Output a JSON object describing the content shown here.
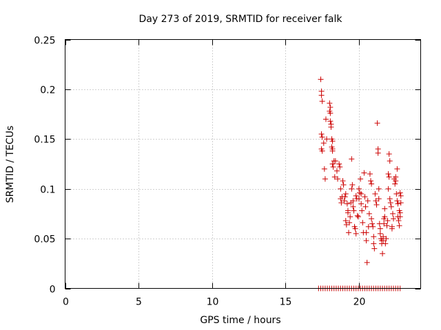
{
  "chart_data": {
    "type": "scatter",
    "title": "Day 273 of 2019, SRMTID for receiver falk",
    "xlabel": "GPS time / hours",
    "ylabel": "SRMTID / TECUs",
    "xlim": [
      0,
      24.2
    ],
    "ylim": [
      0,
      0.25
    ],
    "x_ticks": [
      0,
      5,
      10,
      15,
      20
    ],
    "y_ticks": [
      0,
      0.05,
      0.1,
      0.15,
      0.2,
      0.25
    ],
    "x_tick_labels": [
      "0",
      "5",
      "10",
      "15",
      "20"
    ],
    "y_tick_labels": [
      "0",
      "0.05",
      "0.1",
      "0.15",
      "0.2",
      "0.25"
    ],
    "grid": true,
    "legend": "none",
    "marker": "plus",
    "color": "#cc0000",
    "series": [
      {
        "points": [
          [
            17.4,
            0.21
          ],
          [
            17.45,
            0.198
          ],
          [
            17.45,
            0.194
          ],
          [
            17.5,
            0.188
          ],
          [
            17.45,
            0.155
          ],
          [
            17.5,
            0.152
          ],
          [
            17.45,
            0.14
          ],
          [
            17.5,
            0.138
          ],
          [
            17.6,
            0.146
          ],
          [
            17.65,
            0.12
          ],
          [
            17.7,
            0.11
          ],
          [
            17.75,
            0.17
          ],
          [
            17.8,
            0.15
          ],
          [
            18.0,
            0.186
          ],
          [
            18.05,
            0.182
          ],
          [
            18.0,
            0.178
          ],
          [
            18.05,
            0.176
          ],
          [
            18.05,
            0.168
          ],
          [
            18.1,
            0.165
          ],
          [
            18.1,
            0.162
          ],
          [
            18.15,
            0.15
          ],
          [
            18.2,
            0.148
          ],
          [
            18.15,
            0.142
          ],
          [
            18.2,
            0.14
          ],
          [
            18.2,
            0.138
          ],
          [
            18.2,
            0.125
          ],
          [
            18.25,
            0.122
          ],
          [
            18.3,
            0.128
          ],
          [
            18.35,
            0.112
          ],
          [
            18.4,
            0.128
          ],
          [
            18.5,
            0.118
          ],
          [
            18.55,
            0.11
          ],
          [
            18.65,
            0.125
          ],
          [
            18.7,
            0.122
          ],
          [
            18.75,
            0.1
          ],
          [
            18.75,
            0.09
          ],
          [
            18.8,
            0.086
          ],
          [
            18.85,
            0.092
          ],
          [
            18.9,
            0.108
          ],
          [
            18.95,
            0.104
          ],
          [
            19.0,
            0.088
          ],
          [
            19.05,
            0.092
          ],
          [
            19.1,
            0.095
          ],
          [
            19.1,
            0.068
          ],
          [
            19.15,
            0.064
          ],
          [
            19.2,
            0.085
          ],
          [
            19.25,
            0.078
          ],
          [
            19.25,
            0.076
          ],
          [
            19.3,
            0.056
          ],
          [
            19.35,
            0.066
          ],
          [
            19.4,
            0.072
          ],
          [
            19.45,
            0.086
          ],
          [
            19.5,
            0.1
          ],
          [
            19.5,
            0.13
          ],
          [
            19.55,
            0.104
          ],
          [
            19.6,
            0.088
          ],
          [
            19.6,
            0.082
          ],
          [
            19.65,
            0.078
          ],
          [
            19.7,
            0.062
          ],
          [
            19.75,
            0.06
          ],
          [
            19.8,
            0.055
          ],
          [
            19.8,
            0.093
          ],
          [
            19.85,
            0.09
          ],
          [
            19.9,
            0.073
          ],
          [
            19.95,
            0.072
          ],
          [
            20.0,
            0.09
          ],
          [
            20.0,
            0.1
          ],
          [
            20.05,
            0.096
          ],
          [
            20.1,
            0.11
          ],
          [
            20.15,
            0.095
          ],
          [
            20.15,
            0.085
          ],
          [
            20.2,
            0.078
          ],
          [
            20.25,
            0.066
          ],
          [
            20.3,
            0.056
          ],
          [
            20.35,
            0.116
          ],
          [
            20.4,
            0.092
          ],
          [
            20.45,
            0.082
          ],
          [
            20.5,
            0.056
          ],
          [
            20.5,
            0.048
          ],
          [
            20.55,
            0.026
          ],
          [
            20.6,
            0.088
          ],
          [
            20.65,
            0.062
          ],
          [
            20.7,
            0.075
          ],
          [
            20.75,
            0.115
          ],
          [
            20.8,
            0.108
          ],
          [
            20.85,
            0.105
          ],
          [
            20.85,
            0.07
          ],
          [
            20.9,
            0.065
          ],
          [
            20.95,
            0.062
          ],
          [
            21.0,
            0.052
          ],
          [
            21.0,
            0.045
          ],
          [
            21.05,
            0.04
          ],
          [
            21.1,
            0.095
          ],
          [
            21.15,
            0.088
          ],
          [
            21.2,
            0.084
          ],
          [
            21.25,
            0.166
          ],
          [
            21.3,
            0.14
          ],
          [
            21.3,
            0.136
          ],
          [
            21.35,
            0.1
          ],
          [
            21.35,
            0.09
          ],
          [
            21.4,
            0.065
          ],
          [
            21.45,
            0.06
          ],
          [
            21.45,
            0.055
          ],
          [
            21.5,
            0.05
          ],
          [
            21.55,
            0.048
          ],
          [
            21.55,
            0.045
          ],
          [
            21.6,
            0.035
          ],
          [
            21.65,
            0.048
          ],
          [
            21.65,
            0.052
          ],
          [
            21.7,
            0.065
          ],
          [
            21.7,
            0.07
          ],
          [
            21.75,
            0.072
          ],
          [
            21.75,
            0.08
          ],
          [
            21.8,
            0.045
          ],
          [
            21.85,
            0.05
          ],
          [
            21.9,
            0.063
          ],
          [
            21.95,
            0.068
          ],
          [
            22.0,
            0.1
          ],
          [
            22.0,
            0.115
          ],
          [
            22.05,
            0.112
          ],
          [
            22.05,
            0.135
          ],
          [
            22.1,
            0.128
          ],
          [
            22.1,
            0.09
          ],
          [
            22.15,
            0.086
          ],
          [
            22.2,
            0.082
          ],
          [
            22.25,
            0.062
          ],
          [
            22.25,
            0.06
          ],
          [
            22.3,
            0.075
          ],
          [
            22.35,
            0.07
          ],
          [
            22.4,
            0.11
          ],
          [
            22.45,
            0.105
          ],
          [
            22.5,
            0.112
          ],
          [
            22.5,
            0.108
          ],
          [
            22.55,
            0.095
          ],
          [
            22.6,
            0.12
          ],
          [
            22.6,
            0.088
          ],
          [
            22.65,
            0.085
          ],
          [
            22.65,
            0.072
          ],
          [
            22.7,
            0.068
          ],
          [
            22.75,
            0.063
          ],
          [
            22.75,
            0.078
          ],
          [
            22.8,
            0.072
          ],
          [
            22.8,
            0.076
          ],
          [
            22.85,
            0.086
          ],
          [
            22.8,
            0.096
          ],
          [
            22.85,
            0.093
          ]
        ]
      },
      {
        "points": [
          [
            17.25,
            0
          ],
          [
            17.4,
            0
          ],
          [
            17.55,
            0
          ],
          [
            17.7,
            0
          ],
          [
            17.85,
            0
          ],
          [
            18.0,
            0
          ],
          [
            18.15,
            0
          ],
          [
            18.3,
            0
          ],
          [
            18.45,
            0
          ],
          [
            18.6,
            0
          ],
          [
            18.75,
            0
          ],
          [
            18.9,
            0
          ],
          [
            19.05,
            0
          ],
          [
            19.2,
            0
          ],
          [
            19.35,
            0
          ],
          [
            19.5,
            0
          ],
          [
            19.65,
            0
          ],
          [
            19.8,
            0
          ],
          [
            19.95,
            0
          ],
          [
            20.1,
            0
          ],
          [
            20.25,
            0
          ],
          [
            20.4,
            0
          ],
          [
            20.55,
            0
          ],
          [
            20.7,
            0
          ],
          [
            20.85,
            0
          ],
          [
            21.0,
            0
          ],
          [
            21.15,
            0
          ],
          [
            21.3,
            0
          ],
          [
            21.45,
            0
          ],
          [
            21.6,
            0
          ],
          [
            21.75,
            0
          ],
          [
            21.9,
            0
          ],
          [
            22.05,
            0
          ],
          [
            22.2,
            0
          ],
          [
            22.35,
            0
          ],
          [
            22.5,
            0
          ],
          [
            22.65,
            0
          ],
          [
            22.8,
            0
          ]
        ]
      }
    ]
  }
}
